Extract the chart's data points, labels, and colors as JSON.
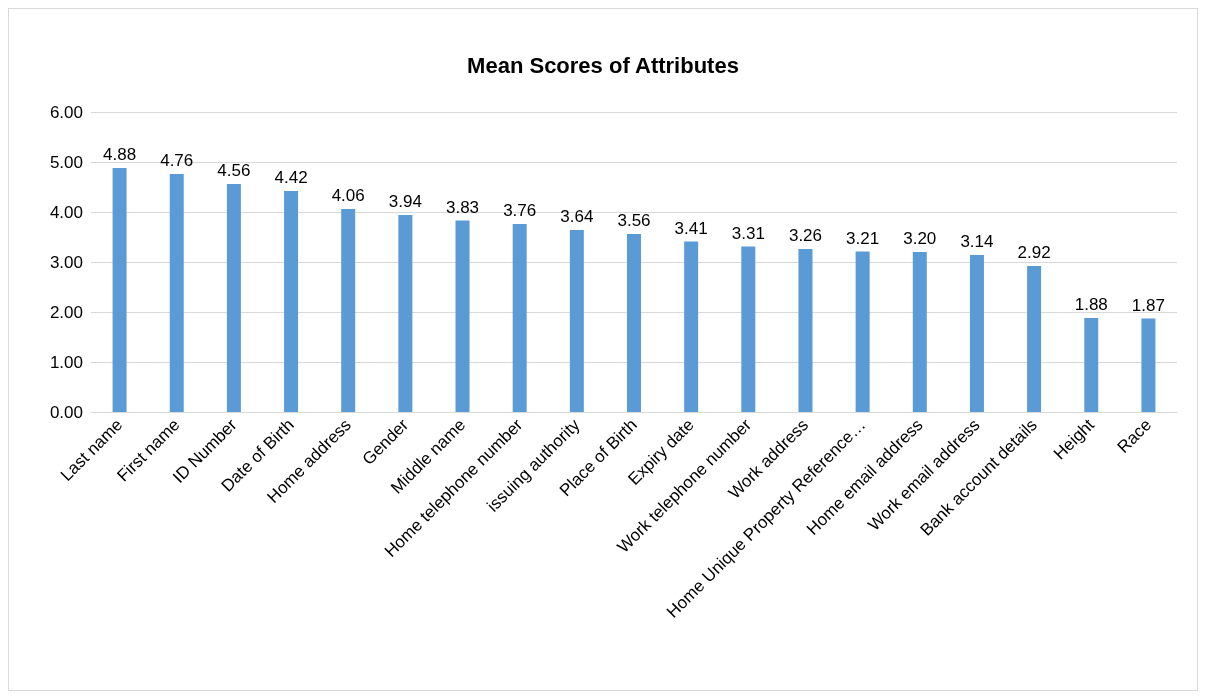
{
  "chart_data": {
    "type": "bar",
    "title": "Mean Scores of Attributes",
    "categories": [
      "Last name",
      "First name",
      "ID Number",
      "Date of Birth",
      "Home address",
      "Gender",
      "Middle name",
      "Home telephone number",
      "issuing authority",
      "Place of Birth",
      "Expiry date",
      "Work telephone number",
      "Work address",
      "Home Unique Property Reference…",
      "Home email address",
      "Work email address",
      "Bank account details",
      "Height",
      "Race"
    ],
    "values": [
      4.88,
      4.76,
      4.56,
      4.42,
      4.06,
      3.94,
      3.83,
      3.76,
      3.64,
      3.56,
      3.41,
      3.31,
      3.26,
      3.21,
      3.2,
      3.14,
      2.92,
      1.88,
      1.87
    ],
    "value_labels": [
      "4.88",
      "4.76",
      "4.56",
      "4.42",
      "4.06",
      "3.94",
      "3.83",
      "3.76",
      "3.64",
      "3.56",
      "3.41",
      "3.31",
      "3.26",
      "3.21",
      "3.20",
      "3.14",
      "2.92",
      "1.88",
      "1.87"
    ],
    "color": "#5b9bd5",
    "ylim": [
      0,
      6
    ],
    "yticks": [
      {
        "value": 0,
        "label": "0.00"
      },
      {
        "value": 1,
        "label": "1.00"
      },
      {
        "value": 2,
        "label": "2.00"
      },
      {
        "value": 3,
        "label": "3.00"
      },
      {
        "value": 4,
        "label": "4.00"
      },
      {
        "value": 5,
        "label": "5.00"
      },
      {
        "value": 6,
        "label": "6.00"
      }
    ],
    "grid": "y"
  }
}
